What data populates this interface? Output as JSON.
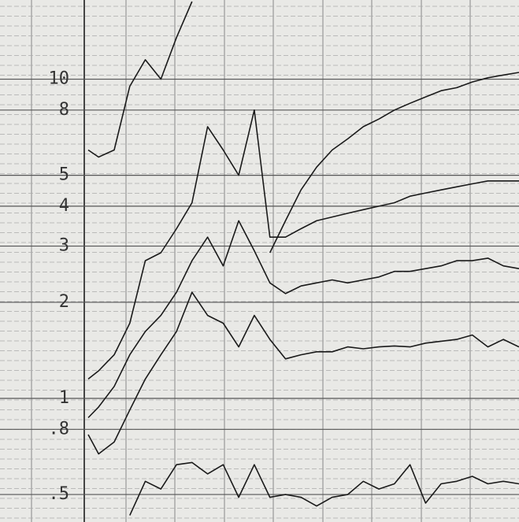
{
  "chart_data": {
    "type": "line",
    "log_scale_y": true,
    "grid": true,
    "ylim": [
      0.41,
      17.7
    ],
    "yticks": [
      10,
      8,
      5,
      4,
      3,
      2,
      1,
      {
        "value": 0.8,
        "label": ".8"
      },
      {
        "value": 0.5,
        "label": ".5"
      }
    ],
    "xlim": [
      0,
      100
    ],
    "x": [
      17,
      19,
      22,
      25,
      28,
      31,
      34,
      37,
      40,
      43,
      46,
      49,
      52,
      55,
      58,
      61,
      64,
      67,
      70,
      73,
      76,
      79,
      82,
      85,
      88,
      91,
      94,
      97,
      100
    ],
    "series": [
      {
        "color": "#1a1a1a",
        "values": [
          6.0,
          5.7,
          6.0,
          9.5,
          11.5,
          10,
          13.5,
          17.5,
          null,
          null,
          null,
          null,
          2.86,
          3.6,
          4.5,
          5.3,
          6.0,
          6.5,
          7.1,
          7.5,
          8.0,
          8.4,
          8.8,
          9.2,
          9.4,
          9.8,
          10.1,
          10.3,
          10.5
        ]
      },
      {
        "color": "#1a1a1a",
        "values": [
          1.15,
          1.22,
          1.37,
          1.72,
          2.7,
          2.86,
          3.4,
          4.1,
          7.1,
          6.0,
          5.0,
          8.0,
          3.2,
          3.2,
          3.4,
          3.6,
          3.7,
          3.8,
          3.9,
          4.0,
          4.1,
          4.3,
          4.4,
          4.5,
          4.6,
          4.7,
          4.8,
          4.8,
          4.8
        ]
      },
      {
        "color": "#1a1a1a",
        "values": [
          0.87,
          0.94,
          1.09,
          1.37,
          1.62,
          1.82,
          2.15,
          2.7,
          3.2,
          2.6,
          3.6,
          2.9,
          2.3,
          2.13,
          2.25,
          2.3,
          2.35,
          2.3,
          2.35,
          2.4,
          2.5,
          2.5,
          2.55,
          2.6,
          2.7,
          2.7,
          2.75,
          2.6,
          2.55
        ]
      },
      {
        "color": "#1a1a1a",
        "values": [
          0.77,
          0.67,
          0.73,
          0.92,
          1.15,
          1.37,
          1.62,
          2.15,
          1.82,
          1.72,
          1.45,
          1.82,
          1.53,
          1.33,
          1.37,
          1.4,
          1.4,
          1.45,
          1.43,
          1.45,
          1.46,
          1.45,
          1.49,
          1.51,
          1.53,
          1.58,
          1.45,
          1.53,
          1.45
        ]
      },
      {
        "color": "#1a1a1a",
        "values": [
          null,
          null,
          null,
          0.43,
          0.55,
          0.52,
          0.62,
          0.63,
          0.58,
          0.62,
          0.49,
          0.62,
          0.49,
          0.5,
          0.49,
          0.46,
          0.49,
          0.5,
          0.55,
          0.52,
          0.54,
          0.62,
          0.47,
          0.54,
          0.55,
          0.57,
          0.54,
          0.55,
          0.54
        ]
      }
    ]
  }
}
